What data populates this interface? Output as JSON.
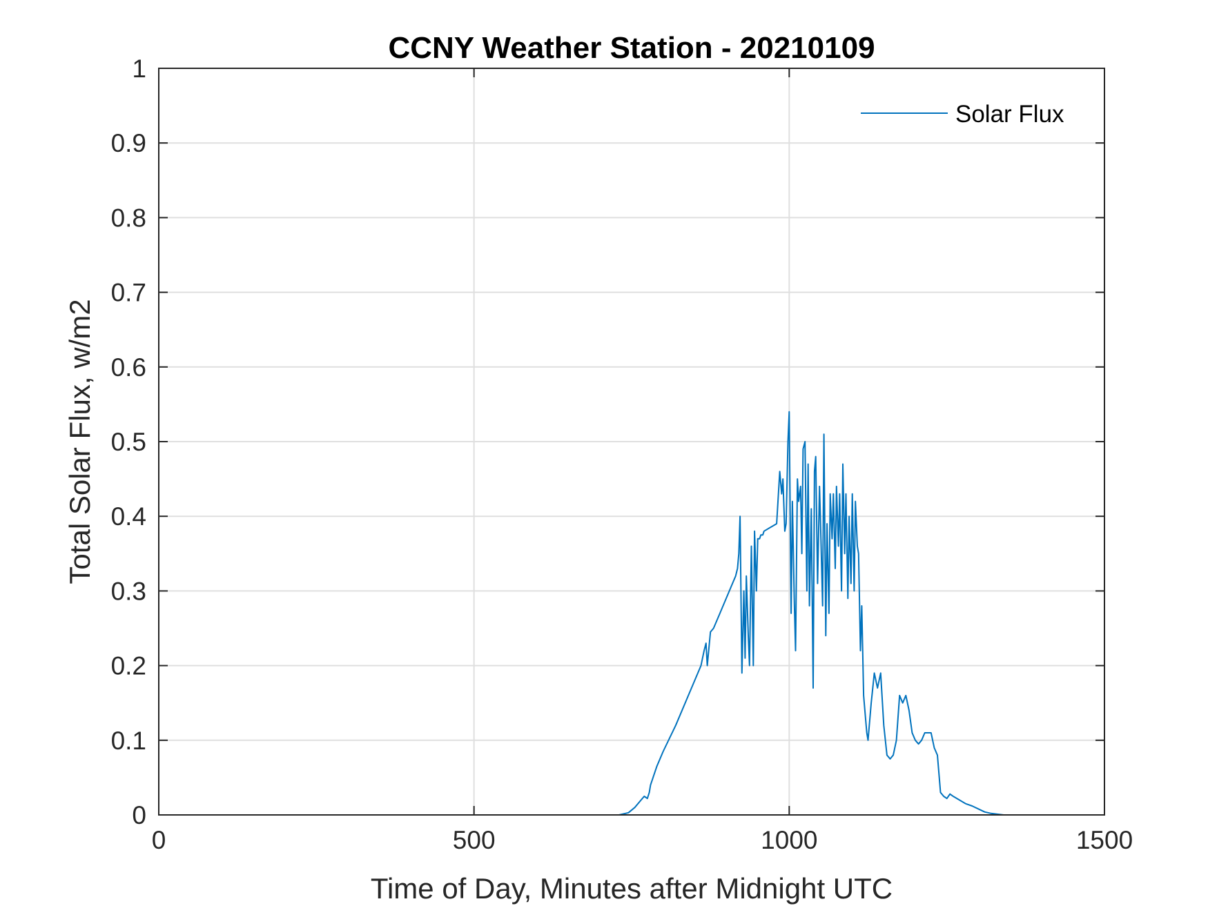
{
  "chart_data": {
    "type": "line",
    "title": "CCNY Weather Station - 20210109",
    "xlabel": "Time of Day, Minutes after Midnight UTC",
    "ylabel": "Total Solar Flux, w/m2",
    "xlim": [
      0,
      1500
    ],
    "ylim": [
      0,
      1
    ],
    "xticks": [
      0,
      500,
      1000,
      1500
    ],
    "xtick_labels": [
      "0",
      "500",
      "1000",
      "1500"
    ],
    "yticks": [
      0,
      0.1,
      0.2,
      0.3,
      0.4,
      0.5,
      0.6,
      0.7,
      0.8,
      0.9,
      1
    ],
    "ytick_labels": [
      "0",
      "0.1",
      "0.2",
      "0.3",
      "0.4",
      "0.5",
      "0.6",
      "0.7",
      "0.8",
      "0.9",
      "1"
    ],
    "grid": true,
    "legend_position": "top-right",
    "line_color": "#0072bd",
    "series": [
      {
        "name": "Solar Flux",
        "x": [
          0,
          500,
          730,
          745,
          755,
          765,
          770,
          775,
          778,
          780,
          790,
          800,
          820,
          840,
          860,
          865,
          868,
          870,
          875,
          880,
          890,
          900,
          910,
          915,
          918,
          920,
          922,
          925,
          928,
          930,
          932,
          935,
          937,
          940,
          943,
          945,
          948,
          950,
          953,
          955,
          958,
          960,
          970,
          980,
          985,
          988,
          990,
          993,
          995,
          998,
          1000,
          1003,
          1005,
          1008,
          1010,
          1013,
          1015,
          1018,
          1020,
          1022,
          1025,
          1028,
          1030,
          1032,
          1035,
          1038,
          1040,
          1042,
          1045,
          1048,
          1050,
          1053,
          1055,
          1058,
          1060,
          1063,
          1065,
          1068,
          1070,
          1073,
          1075,
          1078,
          1080,
          1083,
          1085,
          1088,
          1090,
          1093,
          1095,
          1098,
          1100,
          1103,
          1105,
          1108,
          1110,
          1113,
          1115,
          1118,
          1120,
          1123,
          1125,
          1130,
          1135,
          1140,
          1145,
          1150,
          1155,
          1160,
          1165,
          1170,
          1175,
          1180,
          1185,
          1190,
          1195,
          1200,
          1205,
          1210,
          1215,
          1220,
          1225,
          1230,
          1235,
          1240,
          1245,
          1250,
          1255,
          1260,
          1270,
          1280,
          1290,
          1300,
          1310,
          1320,
          1330,
          1340,
          1350,
          1400,
          1440
        ],
        "y": [
          0,
          0,
          0,
          0.003,
          0.01,
          0.02,
          0.025,
          0.022,
          0.03,
          0.04,
          0.065,
          0.085,
          0.12,
          0.16,
          0.2,
          0.22,
          0.23,
          0.2,
          0.245,
          0.25,
          0.27,
          0.29,
          0.31,
          0.32,
          0.33,
          0.35,
          0.4,
          0.19,
          0.3,
          0.21,
          0.32,
          0.24,
          0.2,
          0.36,
          0.2,
          0.38,
          0.3,
          0.37,
          0.37,
          0.375,
          0.375,
          0.38,
          0.385,
          0.39,
          0.46,
          0.43,
          0.45,
          0.38,
          0.39,
          0.5,
          0.54,
          0.27,
          0.42,
          0.29,
          0.22,
          0.45,
          0.42,
          0.44,
          0.35,
          0.49,
          0.5,
          0.3,
          0.47,
          0.28,
          0.41,
          0.17,
          0.46,
          0.48,
          0.31,
          0.44,
          0.38,
          0.28,
          0.51,
          0.24,
          0.39,
          0.27,
          0.43,
          0.37,
          0.43,
          0.33,
          0.44,
          0.36,
          0.43,
          0.3,
          0.47,
          0.35,
          0.43,
          0.29,
          0.4,
          0.31,
          0.43,
          0.3,
          0.42,
          0.36,
          0.35,
          0.22,
          0.28,
          0.16,
          0.14,
          0.11,
          0.1,
          0.15,
          0.19,
          0.17,
          0.19,
          0.12,
          0.08,
          0.075,
          0.08,
          0.1,
          0.16,
          0.15,
          0.16,
          0.14,
          0.11,
          0.1,
          0.095,
          0.1,
          0.11,
          0.11,
          0.11,
          0.09,
          0.08,
          0.03,
          0.025,
          0.022,
          0.028,
          0.025,
          0.02,
          0.015,
          0.012,
          0.008,
          0.004,
          0.002,
          0.001,
          0,
          0,
          0,
          0
        ]
      }
    ]
  }
}
